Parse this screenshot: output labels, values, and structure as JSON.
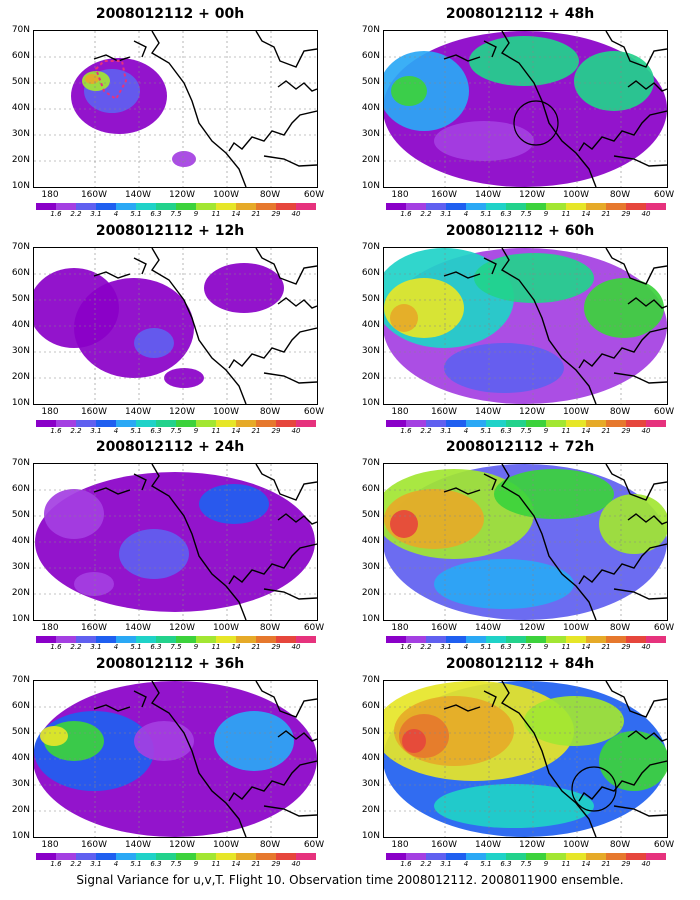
{
  "caption": "Signal Variance for u,v,T. Flight 10. Observation time 2008012112. 2008011900 ensemble.",
  "y_ticks": [
    "70N",
    "60N",
    "50N",
    "40N",
    "30N",
    "20N",
    "10N"
  ],
  "x_ticks": [
    "180",
    "160W",
    "140W",
    "120W",
    "100W",
    "80W",
    "60W"
  ],
  "colorbar": {
    "labels": [
      "1.6",
      "2.2",
      "3.1",
      "4",
      "5.1",
      "6.3",
      "7.5",
      "9",
      "11",
      "14",
      "21",
      "29",
      "40"
    ],
    "colors": [
      "#8a00c8",
      "#a43fe2",
      "#6060f0",
      "#1f5ff0",
      "#2aa8f5",
      "#1fd2c8",
      "#22d28c",
      "#3cd23c",
      "#a2e632",
      "#e6e628",
      "#e6aa28",
      "#e6782d",
      "#e6463c",
      "#e6327d"
    ]
  },
  "panels": [
    {
      "title": "2008012112 + 00h",
      "level": 0,
      "circle": false,
      "dashed": true
    },
    {
      "title": "2008012112 + 48h",
      "level": 4,
      "circle": true,
      "circle_pos": "west-coast",
      "dashed": false
    },
    {
      "title": "2008012112 + 12h",
      "level": 1,
      "circle": false,
      "dashed": false
    },
    {
      "title": "2008012112 + 60h",
      "level": 5,
      "circle": false,
      "dashed": false
    },
    {
      "title": "2008012112 + 24h",
      "level": 2,
      "circle": false,
      "dashed": false
    },
    {
      "title": "2008012112 + 72h",
      "level": 6,
      "circle": false,
      "dashed": false
    },
    {
      "title": "2008012112 + 36h",
      "level": 3,
      "circle": false,
      "dashed": false
    },
    {
      "title": "2008012112 + 84h",
      "level": 7,
      "circle": true,
      "circle_pos": "gulf",
      "dashed": false
    }
  ]
}
